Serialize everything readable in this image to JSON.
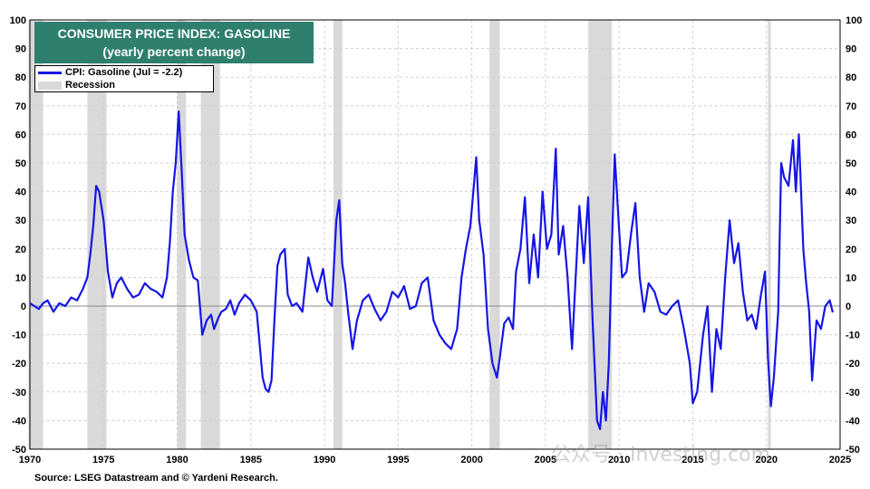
{
  "chart_data": {
    "type": "line",
    "title": "CONSUMER PRICE INDEX: GASOLINE",
    "subtitle": "(yearly percent change)",
    "ylim": [
      -50,
      100
    ],
    "yticks": [
      100,
      90,
      80,
      70,
      60,
      50,
      40,
      30,
      20,
      10,
      0,
      -10,
      -20,
      -30,
      -40,
      -50
    ],
    "xlim": [
      1970,
      2025
    ],
    "xticks": [
      1970,
      1975,
      1980,
      1985,
      1990,
      1995,
      2000,
      2005,
      2010,
      2015,
      2020,
      2025
    ],
    "grid": true,
    "legend_position": "top-left",
    "colors": {
      "series": "#1515e6",
      "recession": "#d9d9d9",
      "title_bg": "#2e7f6e"
    },
    "series": [
      {
        "name": "CPI: Gasoline (Jul = -2.2)",
        "x": [
          1970.0,
          1970.3,
          1970.6,
          1970.9,
          1971.2,
          1971.6,
          1972.0,
          1972.4,
          1972.8,
          1973.2,
          1973.6,
          1973.9,
          1974.1,
          1974.3,
          1974.5,
          1974.7,
          1975.0,
          1975.3,
          1975.6,
          1975.9,
          1976.2,
          1976.6,
          1977.0,
          1977.4,
          1977.8,
          1978.2,
          1978.6,
          1979.0,
          1979.3,
          1979.5,
          1979.7,
          1979.9,
          1980.1,
          1980.3,
          1980.5,
          1980.8,
          1981.1,
          1981.4,
          1981.7,
          1982.0,
          1982.3,
          1982.5,
          1982.8,
          1983.0,
          1983.3,
          1983.6,
          1983.9,
          1984.2,
          1984.6,
          1985.0,
          1985.4,
          1985.8,
          1986.0,
          1986.2,
          1986.4,
          1986.6,
          1986.8,
          1987.0,
          1987.3,
          1987.5,
          1987.8,
          1988.1,
          1988.5,
          1988.9,
          1989.2,
          1989.5,
          1989.9,
          1990.2,
          1990.5,
          1990.8,
          1991.0,
          1991.2,
          1991.4,
          1991.6,
          1991.9,
          1992.2,
          1992.6,
          1993.0,
          1993.4,
          1993.8,
          1994.2,
          1994.6,
          1995.0,
          1995.4,
          1995.8,
          1996.2,
          1996.6,
          1997.0,
          1997.4,
          1997.8,
          1998.2,
          1998.6,
          1999.0,
          1999.3,
          1999.6,
          1999.9,
          2000.1,
          2000.3,
          2000.5,
          2000.8,
          2001.1,
          2001.4,
          2001.7,
          2001.9,
          2002.2,
          2002.5,
          2002.8,
          2003.0,
          2003.3,
          2003.6,
          2003.9,
          2004.2,
          2004.5,
          2004.8,
          2005.1,
          2005.4,
          2005.7,
          2005.9,
          2006.2,
          2006.5,
          2006.8,
          2007.0,
          2007.3,
          2007.6,
          2007.9,
          2008.2,
          2008.5,
          2008.7,
          2008.9,
          2009.1,
          2009.3,
          2009.5,
          2009.7,
          2009.9,
          2010.2,
          2010.5,
          2010.8,
          2011.1,
          2011.4,
          2011.7,
          2012.0,
          2012.4,
          2012.8,
          2013.2,
          2013.6,
          2014.0,
          2014.4,
          2014.8,
          2015.0,
          2015.3,
          2015.7,
          2016.0,
          2016.3,
          2016.6,
          2016.9,
          2017.2,
          2017.5,
          2017.8,
          2018.1,
          2018.4,
          2018.7,
          2019.0,
          2019.3,
          2019.6,
          2019.9,
          2020.1,
          2020.3,
          2020.5,
          2020.8,
          2021.0,
          2021.2,
          2021.5,
          2021.8,
          2022.0,
          2022.2,
          2022.5,
          2022.7,
          2022.9,
          2023.1,
          2023.4,
          2023.7,
          2024.0,
          2024.3,
          2024.5
        ],
        "values": [
          1,
          0,
          -1,
          1,
          2,
          -2,
          1,
          0,
          3,
          2,
          6,
          10,
          18,
          28,
          42,
          40,
          30,
          12,
          3,
          8,
          10,
          6,
          3,
          4,
          8,
          6,
          5,
          3,
          10,
          22,
          40,
          50,
          68,
          48,
          25,
          16,
          10,
          9,
          -10,
          -5,
          -3,
          -8,
          -4,
          -2,
          -1,
          2,
          -3,
          1,
          4,
          2,
          -2,
          -25,
          -29,
          -30,
          -26,
          -5,
          14,
          18,
          20,
          4,
          0,
          1,
          -2,
          17,
          10,
          5,
          13,
          2,
          0,
          30,
          37,
          15,
          8,
          -2,
          -15,
          -5,
          2,
          4,
          -1,
          -5,
          -2,
          5,
          3,
          7,
          -1,
          0,
          8,
          10,
          -5,
          -10,
          -13,
          -15,
          -8,
          10,
          20,
          28,
          40,
          52,
          30,
          18,
          -8,
          -20,
          -25,
          -18,
          -6,
          -4,
          -8,
          12,
          20,
          38,
          8,
          25,
          10,
          40,
          20,
          25,
          55,
          18,
          28,
          10,
          -15,
          5,
          35,
          15,
          38,
          -5,
          -40,
          -43,
          -30,
          -40,
          -20,
          20,
          53,
          35,
          10,
          12,
          25,
          36,
          10,
          -2,
          8,
          5,
          -2,
          -3,
          0,
          2,
          -8,
          -20,
          -34,
          -30,
          -10,
          0,
          -30,
          -8,
          -15,
          10,
          30,
          15,
          22,
          5,
          -5,
          -3,
          -8,
          3,
          12,
          -18,
          -35,
          -25,
          -2,
          50,
          45,
          42,
          58,
          40,
          60,
          20,
          8,
          -2,
          -26,
          -5,
          -8,
          0,
          2,
          -2.2
        ]
      }
    ],
    "recessions": [
      [
        1969.9,
        1970.9
      ],
      [
        1973.9,
        1975.2
      ],
      [
        1980.0,
        1980.6
      ],
      [
        1981.6,
        1982.9
      ],
      [
        1990.6,
        1991.2
      ],
      [
        2001.2,
        2001.9
      ],
      [
        2007.9,
        2009.5
      ],
      [
        2020.1,
        2020.3
      ]
    ],
    "source": "Source: LSEG Datastream and © Yardeni Research.",
    "legend": {
      "series_label": "CPI: Gasoline (Jul = -2.2)",
      "recession_label": "Recession"
    }
  },
  "watermark": "公众号 · Investing.com"
}
